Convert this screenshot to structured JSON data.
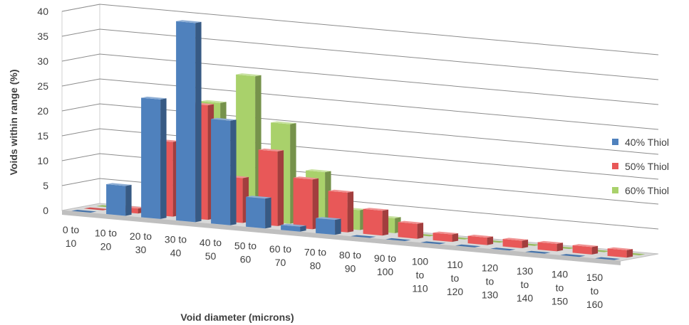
{
  "chart_data": {
    "type": "bar",
    "subtype": "3d-clustered-column",
    "title": "",
    "xlabel": "Void diameter (microns)",
    "ylabel": "Voids within range (%)",
    "ylim": [
      0,
      40
    ],
    "yticks": [
      0,
      5,
      10,
      15,
      20,
      25,
      30,
      35,
      40
    ],
    "grid": true,
    "legend_position": "right",
    "categories": [
      [
        "0 to",
        "10"
      ],
      [
        "10 to",
        "20"
      ],
      [
        "20 to",
        "30"
      ],
      [
        "30 to",
        "40"
      ],
      [
        "40 to",
        "50"
      ],
      [
        "50 to",
        "60"
      ],
      [
        "60 to",
        "70"
      ],
      [
        "70 to",
        "80"
      ],
      [
        "80 to",
        "90"
      ],
      [
        "90 to",
        "100"
      ],
      [
        "100",
        "to",
        "110"
      ],
      [
        "110",
        "to",
        "120"
      ],
      [
        "120",
        "to",
        "130"
      ],
      [
        "130",
        "to",
        "140"
      ],
      [
        "140",
        "to",
        "150"
      ],
      [
        "150",
        "to",
        "160"
      ]
    ],
    "series": [
      {
        "name": "40% Thiol",
        "color": "#4f81bd",
        "values": [
          0,
          6,
          24,
          40,
          21,
          6,
          1,
          3,
          0,
          0,
          0,
          0,
          0,
          0,
          0,
          0
        ]
      },
      {
        "name": "50% Thiol",
        "color": "#e85858",
        "values": [
          0,
          1,
          15,
          23,
          9,
          15,
          10,
          8,
          5,
          3,
          1.5,
          1.5,
          1.5,
          1.5,
          1.5,
          1.5
        ]
      },
      {
        "name": "60% Thiol",
        "color": "#a9d16b",
        "values": [
          0,
          0,
          0,
          23,
          29,
          20,
          11,
          4,
          3,
          0,
          0,
          0,
          0,
          0,
          0,
          0
        ]
      }
    ]
  }
}
